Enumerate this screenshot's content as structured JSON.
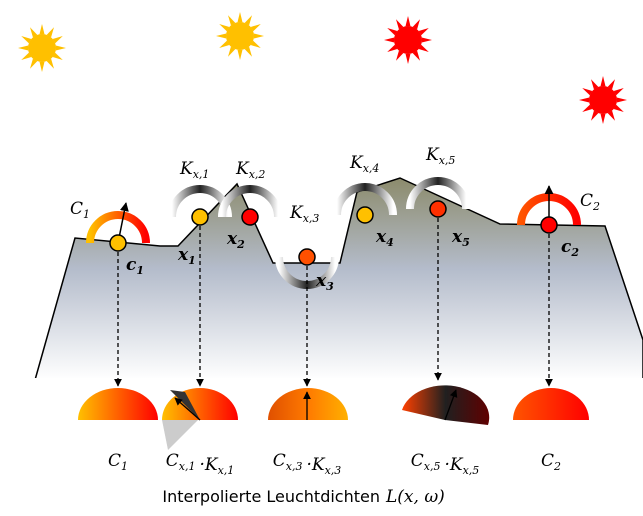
{
  "top_labels": [
    {
      "base": "C",
      "sub": "1"
    },
    {
      "base": "K",
      "sub": "x,1"
    },
    {
      "base": "K",
      "sub": "x,2"
    },
    {
      "base": "K",
      "sub": "x,3"
    },
    {
      "base": "K",
      "sub": "x,4"
    },
    {
      "base": "K",
      "sub": "x,5"
    },
    {
      "base": "C",
      "sub": "2"
    }
  ],
  "points": [
    {
      "base": "c",
      "sub": "1"
    },
    {
      "base": "x",
      "sub": "1"
    },
    {
      "base": "x",
      "sub": "2"
    },
    {
      "base": "x",
      "sub": "3"
    },
    {
      "base": "x",
      "sub": "4"
    },
    {
      "base": "x",
      "sub": "5"
    },
    {
      "base": "c",
      "sub": "2"
    }
  ],
  "results": [
    [
      {
        "base": "C",
        "sub": "1"
      }
    ],
    [
      {
        "base": "C",
        "sub": "x,1"
      },
      {
        "base": "K",
        "sub": "x,1"
      }
    ],
    [
      {
        "base": "C",
        "sub": "x,3"
      },
      {
        "base": "K",
        "sub": "x,3"
      }
    ],
    [
      {
        "base": "C",
        "sub": "x,5"
      },
      {
        "base": "K",
        "sub": "x,5"
      }
    ],
    [
      {
        "base": "C",
        "sub": "2"
      }
    ]
  ],
  "operator": "·",
  "caption_text": "Interpolierte Leuchtdichten",
  "caption_math": "L(x, ω)"
}
